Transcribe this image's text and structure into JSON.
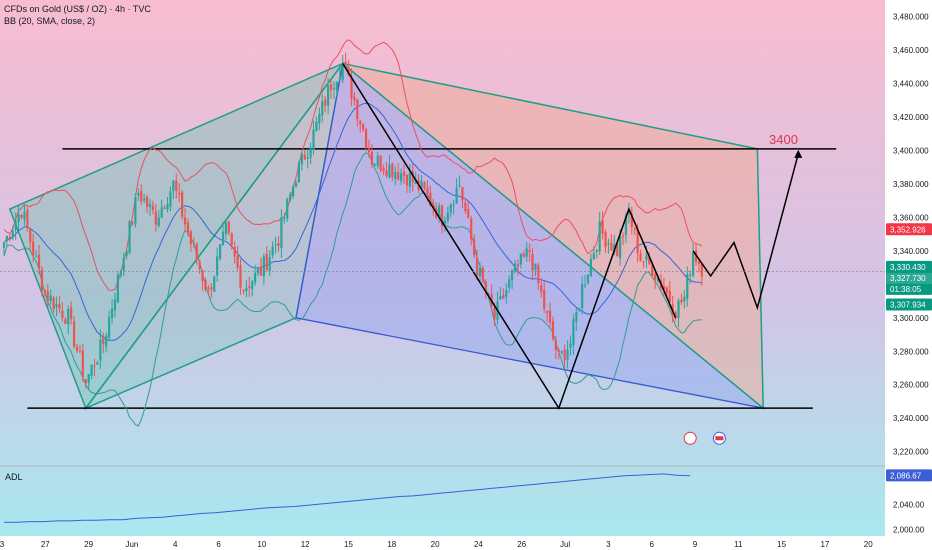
{
  "header": {
    "symbol_title": "CFDs on Gold (US$ / OZ) · 4h · TVC",
    "indicator_title": "BB (20, SMA, close, 2)"
  },
  "adl_panel": {
    "label": "ADL"
  },
  "annotation_3400": "3400",
  "price_badges": {
    "upper": "3,352.926",
    "last_price": "3,330.430",
    "current": "3,327.730",
    "countdown": "01:38:05",
    "lower": "3,307.934",
    "adl_value": "2,086.67"
  },
  "colors": {
    "bg_top": "#f8bccf",
    "bg_bottom": "#a9e8ee",
    "candle_up": "#26a69a",
    "candle_down": "#ef5350",
    "bb_upper": "#e8525f",
    "bb_basis": "#3566d6",
    "bb_lower": "#2f9d93",
    "harmonic_fill_green": "#59c3a8",
    "harmonic_fill_blue": "#8ea3ef",
    "harmonic_fill_orange": "#f1a98d",
    "adl_line": "#3c5fd6"
  },
  "chart_data": {
    "type": "candlestick",
    "title": "CFDs on Gold (US$ / OZ) · 4h · TVC",
    "y_axis": {
      "ticks": [
        "3,480.000",
        "3,460.000",
        "3,440.000",
        "3,420.000",
        "3,400.000",
        "3,380.000",
        "3,360.000",
        "3,340.000",
        "3,320.000",
        "3,300.000",
        "3,280.000",
        "3,260.000",
        "3,240.000",
        "3,220.000"
      ],
      "range": [
        3212,
        3490
      ]
    },
    "x_axis": {
      "ticks": [
        "3",
        "27",
        "29",
        "Jun",
        "4",
        "6",
        "10",
        "12",
        "15",
        "18",
        "20",
        "24",
        "26",
        "Jul",
        "3",
        "6",
        "9",
        "11",
        "15",
        "17",
        "20"
      ]
    },
    "horizontal_lines": [
      3401,
      3246
    ],
    "price_path_anchors": [
      [
        0,
        3345
      ],
      [
        6,
        3365
      ],
      [
        14,
        3315
      ],
      [
        22,
        3300
      ],
      [
        28,
        3262
      ],
      [
        34,
        3285
      ],
      [
        40,
        3330
      ],
      [
        46,
        3375
      ],
      [
        52,
        3360
      ],
      [
        58,
        3380
      ],
      [
        64,
        3345
      ],
      [
        70,
        3315
      ],
      [
        76,
        3352
      ],
      [
        82,
        3318
      ],
      [
        88,
        3328
      ],
      [
        94,
        3348
      ],
      [
        100,
        3385
      ],
      [
        106,
        3410
      ],
      [
        112,
        3440
      ],
      [
        116,
        3452
      ],
      [
        120,
        3430
      ],
      [
        126,
        3395
      ],
      [
        132,
        3390
      ],
      [
        138,
        3385
      ],
      [
        144,
        3375
      ],
      [
        150,
        3360
      ],
      [
        156,
        3380
      ],
      [
        162,
        3330
      ],
      [
        168,
        3300
      ],
      [
        174,
        3325
      ],
      [
        180,
        3340
      ],
      [
        186,
        3300
      ],
      [
        190,
        3275
      ],
      [
        194,
        3285
      ],
      [
        198,
        3318
      ],
      [
        204,
        3352
      ],
      [
        210,
        3340
      ],
      [
        214,
        3362
      ],
      [
        218,
        3336
      ],
      [
        222,
        3330
      ],
      [
        226,
        3318
      ],
      [
        230,
        3305
      ],
      [
        233,
        3312
      ],
      [
        236,
        3340
      ],
      [
        240,
        3327
      ]
    ],
    "projection_path": [
      [
        236,
        3340
      ],
      [
        242,
        3325
      ],
      [
        250,
        3345
      ],
      [
        258,
        3306
      ],
      [
        272,
        3398
      ]
    ],
    "bollinger_bands": {
      "period": 20,
      "type": "SMA",
      "mult": 2
    },
    "adl": {
      "y_ticks": [
        "2,040.00",
        "2,000.00"
      ],
      "range": [
        1990,
        2100
      ],
      "values": [
        2012,
        2012,
        2013,
        2013,
        2014,
        2014,
        2015,
        2015,
        2016,
        2016,
        2018,
        2019,
        2020,
        2022,
        2024,
        2026,
        2027,
        2029,
        2031,
        2033,
        2035,
        2036,
        2037,
        2039,
        2041,
        2043,
        2045,
        2047,
        2049,
        2051,
        2053,
        2054,
        2056,
        2058,
        2060,
        2062,
        2064,
        2066,
        2068,
        2070,
        2072,
        2074,
        2076,
        2078,
        2080,
        2082,
        2084,
        2086,
        2087,
        2088,
        2089,
        2087,
        2086
      ]
    }
  }
}
